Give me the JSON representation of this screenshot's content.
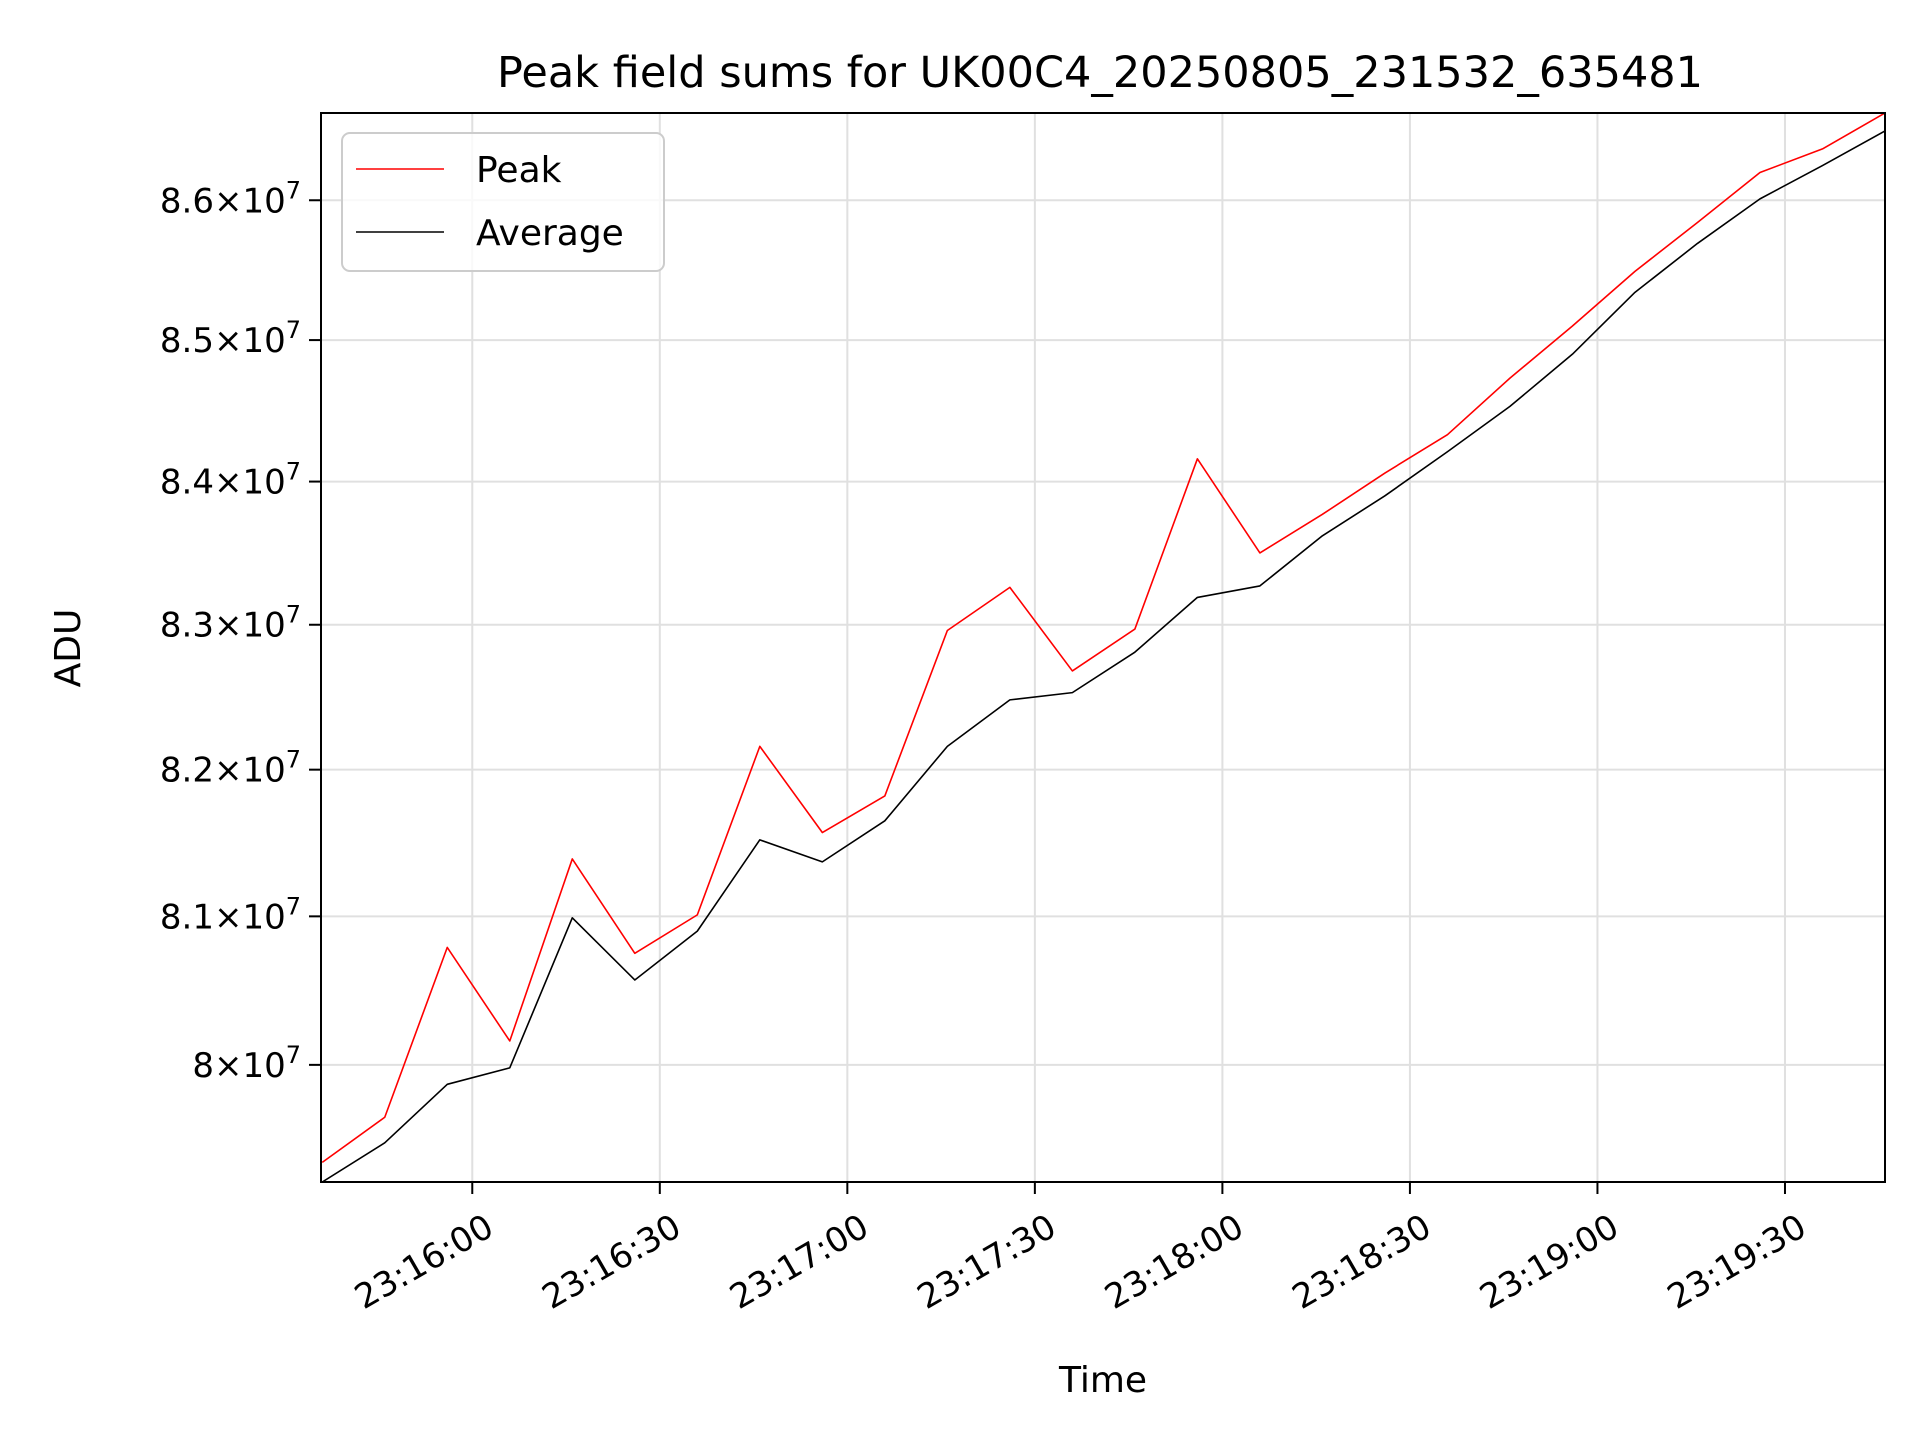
{
  "chart_data": {
    "type": "line",
    "title": "Peak field sums for UK00C4_20250805_231532_635481",
    "xlabel": "Time",
    "ylabel": "ADU",
    "y_scale": "log",
    "grid": true,
    "legend_position": "top-left",
    "x_tick_labels": [
      "23:16:00",
      "23:16:30",
      "23:17:00",
      "23:17:30",
      "23:18:00",
      "23:18:30",
      "23:19:00",
      "23:19:30"
    ],
    "y_ticks": [
      {
        "value": 80000000,
        "mantissa": "8",
        "base": "10",
        "exponent": "7"
      },
      {
        "value": 81000000,
        "mantissa": "8.1",
        "base": "10",
        "exponent": "7"
      },
      {
        "value": 82000000,
        "mantissa": "8.2",
        "base": "10",
        "exponent": "7"
      },
      {
        "value": 83000000,
        "mantissa": "8.3",
        "base": "10",
        "exponent": "7"
      },
      {
        "value": 84000000,
        "mantissa": "8.4",
        "base": "10",
        "exponent": "7"
      },
      {
        "value": 85000000,
        "mantissa": "8.5",
        "base": "10",
        "exponent": "7"
      },
      {
        "value": 86000000,
        "mantissa": "8.6",
        "base": "10",
        "exponent": "7"
      }
    ],
    "x": [
      "23:15:36",
      "23:15:46",
      "23:15:56",
      "23:16:06",
      "23:16:16",
      "23:16:26",
      "23:16:36",
      "23:16:46",
      "23:16:56",
      "23:17:06",
      "23:17:16",
      "23:17:26",
      "23:17:36",
      "23:17:46",
      "23:17:56",
      "23:18:06",
      "23:18:16",
      "23:18:26",
      "23:18:36",
      "23:18:46",
      "23:18:56",
      "23:19:06",
      "23:19:16",
      "23:19:26",
      "23:19:36",
      "23:19:46"
    ],
    "series": [
      {
        "name": "Peak",
        "color": "#ff0000",
        "values": [
          79350000,
          79650000,
          80790000,
          80160000,
          81390000,
          80750000,
          81010000,
          82160000,
          81570000,
          81820000,
          82960000,
          83260000,
          82680000,
          82970000,
          84160000,
          83500000,
          83770000,
          84060000,
          84330000,
          84730000,
          85100000,
          85490000,
          85840000,
          86200000,
          86370000,
          86630000
        ]
      },
      {
        "name": "Average",
        "color": "#000000",
        "values": [
          79220000,
          79480000,
          79870000,
          79980000,
          80990000,
          80570000,
          80900000,
          81520000,
          81370000,
          81650000,
          82160000,
          82480000,
          82530000,
          82810000,
          83190000,
          83270000,
          83620000,
          83900000,
          84210000,
          84530000,
          84900000,
          85340000,
          85690000,
          86010000,
          86250000,
          86500000
        ]
      }
    ]
  }
}
